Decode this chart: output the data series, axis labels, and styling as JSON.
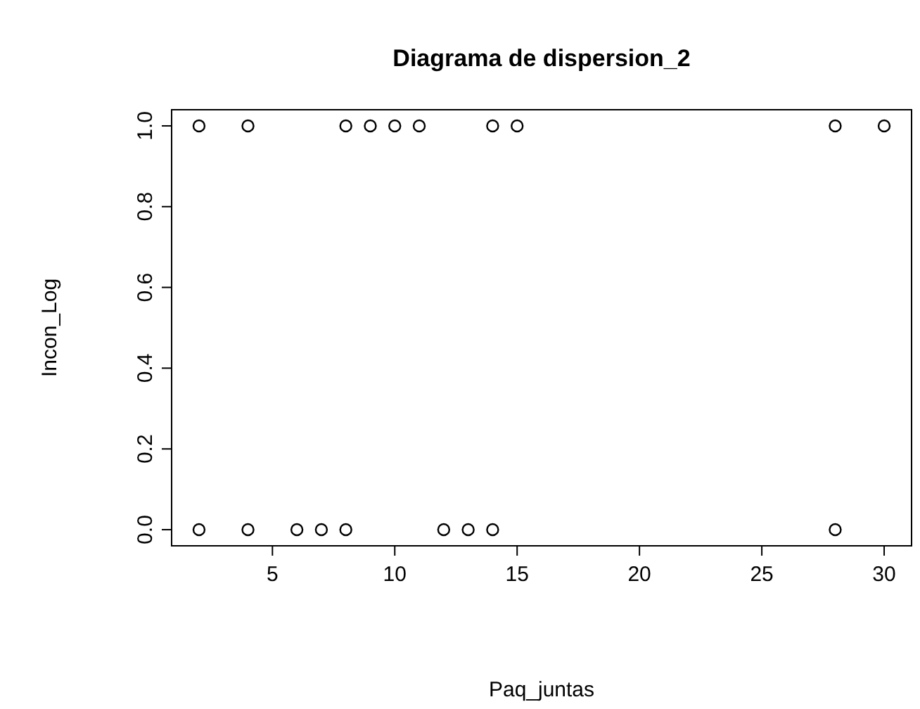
{
  "chart_data": {
    "type": "scatter",
    "title": "Diagrama de dispersion_2",
    "xlabel": "Paq_juntas",
    "ylabel": "Incon_Log",
    "x": [
      2,
      4,
      8,
      9,
      10,
      11,
      14,
      15,
      28,
      30,
      2,
      4,
      6,
      7,
      8,
      12,
      13,
      14,
      28
    ],
    "values": [
      1,
      1,
      1,
      1,
      1,
      1,
      1,
      1,
      1,
      1,
      0,
      0,
      0,
      0,
      0,
      0,
      0,
      0,
      0
    ],
    "color": "#000000",
    "marker": "circle",
    "grid": false,
    "xlim": [
      0.88,
      31.12
    ],
    "xticks": [
      5,
      10,
      15,
      20,
      25,
      30
    ],
    "ylim": [
      -0.04,
      1.04
    ],
    "yticks": [
      {
        "value": 0,
        "label": "0.0"
      },
      0.2,
      0.4,
      0.6,
      0.8,
      {
        "value": 1,
        "label": "1.0"
      }
    ]
  }
}
